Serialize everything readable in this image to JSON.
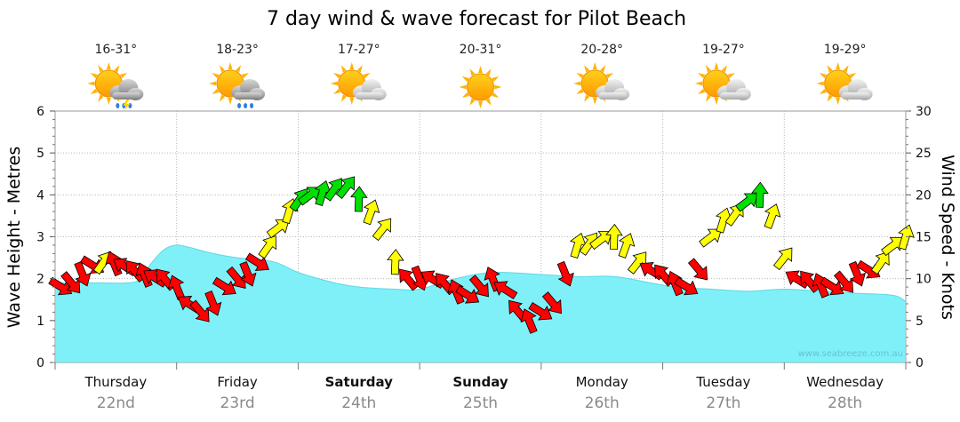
{
  "chart_data": {
    "type": "area",
    "title": "7 day wind & wave forecast for Pilot Beach",
    "ylabel_left": "Wave Height - Metres",
    "ylabel_right": "Wind Speed - Knots",
    "left_axis": {
      "min": 0,
      "max": 6,
      "ticks": [
        "0",
        "1",
        "2",
        "3",
        "4",
        "5",
        "6"
      ]
    },
    "right_axis": {
      "min": 0,
      "max": 30,
      "ticks": [
        "0",
        "5",
        "10",
        "15",
        "20",
        "25",
        "30"
      ]
    },
    "grid": true,
    "watermark": "www.seabreeze.com.au",
    "days": [
      {
        "name": "Thursday",
        "date": "22nd",
        "temp": "16-31°",
        "weather": "storm-icon",
        "bold": false
      },
      {
        "name": "Friday",
        "date": "23rd",
        "temp": "18-23°",
        "weather": "shower-icon",
        "bold": false
      },
      {
        "name": "Saturday",
        "date": "24th",
        "temp": "17-27°",
        "weather": "partly-cloudy-icon",
        "bold": true
      },
      {
        "name": "Sunday",
        "date": "25th",
        "temp": "20-31°",
        "weather": "sunny-icon",
        "bold": true
      },
      {
        "name": "Monday",
        "date": "26th",
        "temp": "20-28°",
        "weather": "partly-cloudy-icon",
        "bold": false
      },
      {
        "name": "Tuesday",
        "date": "27th",
        "temp": "19-27°",
        "weather": "partly-cloudy-icon",
        "bold": false
      },
      {
        "name": "Wednesday",
        "date": "28th",
        "temp": "19-29°",
        "weather": "partly-cloudy-icon",
        "bold": false
      }
    ],
    "wave_series": {
      "name": "",
      "color": "#7ff0f8",
      "x_days": [
        0,
        0.3,
        0.6,
        0.7,
        0.8,
        0.9,
        1.0,
        1.1,
        1.3,
        1.5,
        1.8,
        2.0,
        2.3,
        2.5,
        2.8,
        3.0,
        3.3,
        3.6,
        4.0,
        4.3,
        4.6,
        4.9,
        5.1,
        5.4,
        5.7,
        6.0,
        6.3,
        6.6,
        6.9,
        7.0
      ],
      "values": [
        1.9,
        1.9,
        1.9,
        2.0,
        2.4,
        2.7,
        2.8,
        2.75,
        2.6,
        2.5,
        2.4,
        2.15,
        1.9,
        1.8,
        1.75,
        1.75,
        2.0,
        2.15,
        2.1,
        2.05,
        2.05,
        1.9,
        1.8,
        1.75,
        1.7,
        1.75,
        1.7,
        1.65,
        1.6,
        1.45
      ]
    },
    "wind_series": {
      "name": "",
      "x_days": [
        0.05,
        0.4,
        0.9,
        1.2,
        1.5,
        2.1,
        2.4,
        2.6,
        2.9,
        3.1,
        3.4,
        3.6,
        3.9,
        4.1,
        4.3,
        4.6,
        4.9,
        5.2,
        5.5,
        5.8,
        6.1,
        6.4,
        6.7,
        7.0
      ],
      "knots": [
        9,
        12,
        10,
        6,
        10,
        20,
        21,
        18,
        10,
        10,
        8,
        10,
        5,
        7,
        14,
        15,
        11,
        9,
        17,
        20,
        10,
        9,
        11,
        15
      ],
      "speed_colors": {
        "light": "#ff0000",
        "moderate": "#ffff00",
        "strong": "#00e000"
      }
    }
  }
}
